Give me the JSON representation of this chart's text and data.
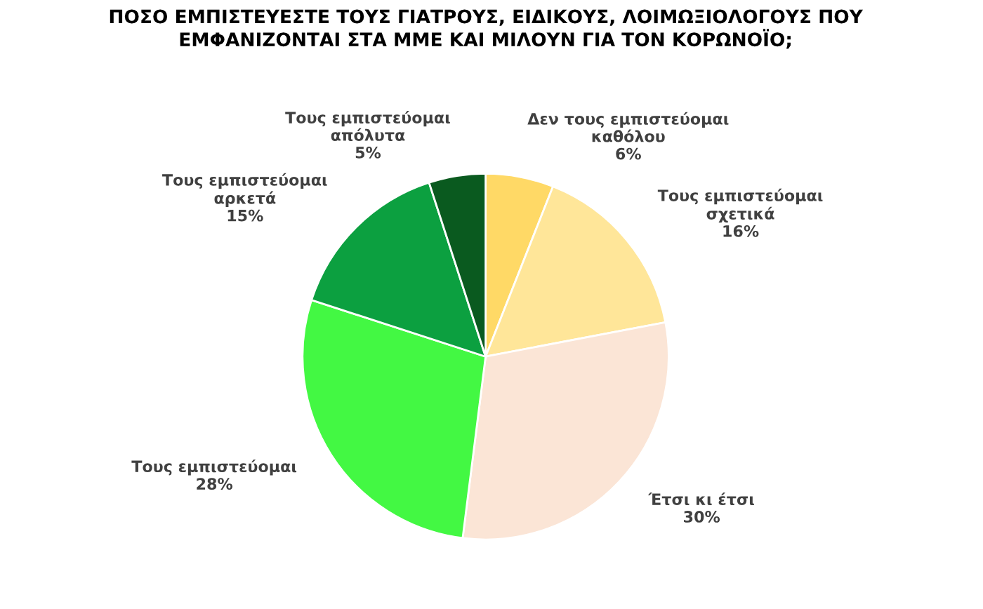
{
  "chart_data": {
    "type": "pie",
    "title": "ΠΟΣΟ ΕΜΠΙΣΤΕΥΕΣΤΕ ΤΟΥΣ ΓΙΑΤΡΟΥΣ, ΕΙΔΙΚΟΥΣ, ΛΟΙΜΩΞΙΟΛΟΓΟΥΣ ΠΟΥ\nΕΜΦΑΝΙΖΟΝΤΑΙ ΣΤΑ ΜΜΕ ΚΑΙ ΜΙΛΟΥΝ ΓΙΑ ΤΟΝ ΚΟΡΩΝΟΪΟ;",
    "categories": [
      "Δεν τους εμπιστεύομαι\nκαθόλου",
      "Τους εμπιστεύομαι\nσχετικά",
      "Έτσι κι έτσι",
      "Τους εμπιστεύομαι",
      "Τους εμπιστεύομαι\nαρκετά",
      "Τους εμπιστεύομαι\nαπόλυτα"
    ],
    "values": [
      6,
      16,
      30,
      28,
      15,
      5
    ],
    "value_labels": [
      "6%",
      "16%",
      "30%",
      "28%",
      "15%",
      "5%"
    ],
    "colors": [
      "#ffd966",
      "#ffe699",
      "#fbe5d6",
      "#43f843",
      "#0ca040",
      "#0a5a1f"
    ],
    "legend": false
  }
}
